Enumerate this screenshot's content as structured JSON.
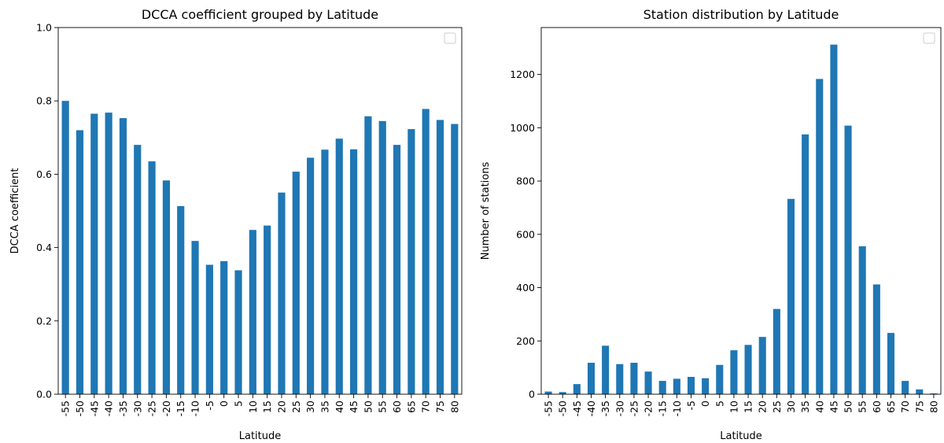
{
  "chart_data": [
    {
      "type": "bar",
      "title": "DCCA coefficient grouped by Latitude",
      "xlabel": "Latitude",
      "ylabel": "DCCA coefficient",
      "ylim": [
        0,
        1.0
      ],
      "yticks": [
        0.0,
        0.2,
        0.4,
        0.6,
        0.8,
        1.0
      ],
      "ytick_labels": [
        "0.0",
        "0.2",
        "0.4",
        "0.6",
        "0.8",
        "1.0"
      ],
      "color": "#1f77b4",
      "legend": "top-right",
      "grid": false,
      "categories": [
        "-55",
        "-50",
        "-45",
        "-40",
        "-35",
        "-30",
        "-25",
        "-20",
        "-15",
        "-10",
        "-5",
        "0",
        "5",
        "10",
        "15",
        "20",
        "25",
        "30",
        "35",
        "40",
        "45",
        "50",
        "55",
        "60",
        "65",
        "70",
        "75",
        "80"
      ],
      "values": [
        0.8,
        0.72,
        0.765,
        0.768,
        0.753,
        0.68,
        0.635,
        0.583,
        0.513,
        0.418,
        0.353,
        0.363,
        0.338,
        0.448,
        0.46,
        0.55,
        0.607,
        0.645,
        0.667,
        0.697,
        0.668,
        0.758,
        0.745,
        0.68,
        0.723,
        0.778,
        0.748,
        0.737
      ]
    },
    {
      "type": "bar",
      "title": "Station distribution by Latitude",
      "xlabel": "Latitude",
      "ylabel": "Number of stations",
      "ylim": [
        0,
        1376
      ],
      "yticks": [
        0,
        200,
        400,
        600,
        800,
        1000,
        1200
      ],
      "ytick_labels": [
        "0",
        "200",
        "400",
        "600",
        "800",
        "1000",
        "1200"
      ],
      "color": "#1f77b4",
      "legend": "top-right",
      "grid": false,
      "categories": [
        "-55",
        "-50",
        "-45",
        "-40",
        "-35",
        "-30",
        "-25",
        "-20",
        "-15",
        "-10",
        "-5",
        "0",
        "5",
        "10",
        "15",
        "20",
        "25",
        "30",
        "35",
        "40",
        "45",
        "50",
        "55",
        "60",
        "65",
        "70",
        "75",
        "80"
      ],
      "values": [
        10,
        8,
        38,
        118,
        182,
        113,
        118,
        85,
        50,
        58,
        65,
        60,
        110,
        165,
        185,
        215,
        320,
        733,
        975,
        1183,
        1312,
        1008,
        555,
        412,
        230,
        50,
        18,
        3
      ]
    }
  ]
}
